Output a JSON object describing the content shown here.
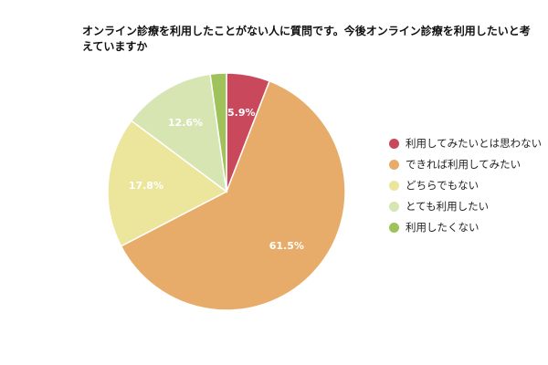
{
  "chart_data": {
    "type": "pie",
    "title": "オンライン診療を利用したことがない人に質問です。今後オンライン診療を利用したいと考えていますか",
    "legend_position": "right",
    "slices": [
      {
        "label": "利用してみたいとは思わない",
        "value": 5.9,
        "value_label": "5.9%",
        "color": "#c9485b"
      },
      {
        "label": "できれば利用してみたい",
        "value": 61.5,
        "value_label": "61.5%",
        "color": "#e8ac6a"
      },
      {
        "label": "どちらでもない",
        "value": 17.8,
        "value_label": "17.8%",
        "color": "#ece59c"
      },
      {
        "label": "とても利用したい",
        "value": 12.6,
        "value_label": "12.6%",
        "color": "#d6e5b2"
      },
      {
        "label": "利用したくない",
        "value": 2.2,
        "value_label": "",
        "color": "#9fc25a"
      }
    ]
  }
}
